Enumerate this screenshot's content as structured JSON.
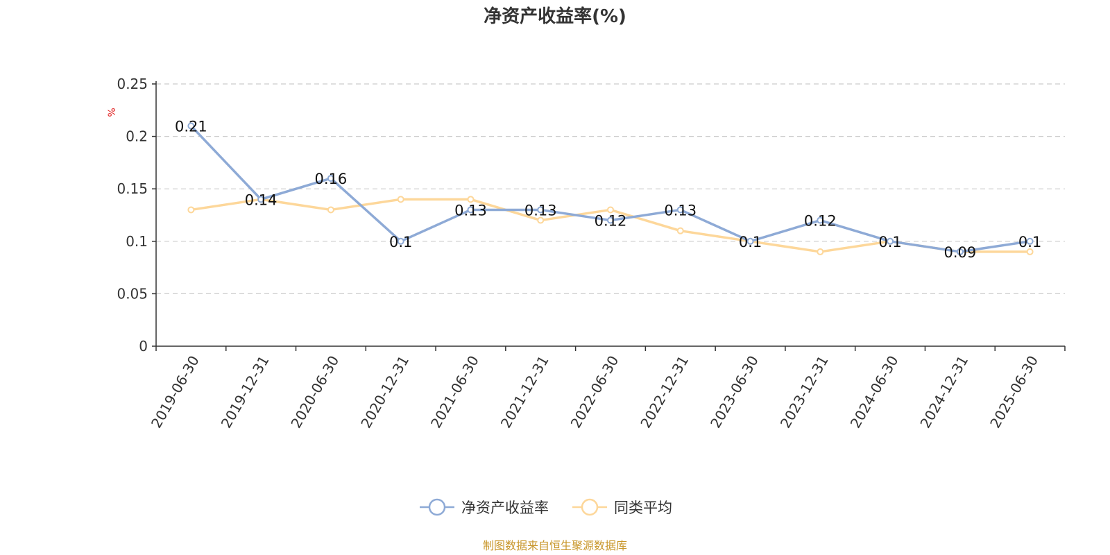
{
  "chart_data": {
    "type": "line",
    "title": "净资产收益率(%)",
    "ylabel": "%",
    "xlabel": "",
    "ylim": [
      0,
      0.25
    ],
    "yticks": [
      "0",
      "0.05",
      "0.1",
      "0.15",
      "0.2",
      "0.25"
    ],
    "grid": true,
    "legend_position": "bottom",
    "categories": [
      "2019-06-30",
      "2019-12-31",
      "2020-06-30",
      "2020-12-31",
      "2021-06-30",
      "2021-12-31",
      "2022-06-30",
      "2022-12-31",
      "2023-06-30",
      "2023-12-31",
      "2024-06-30",
      "2024-12-31",
      "2025-06-30"
    ],
    "series": [
      {
        "name": "净资产收益率",
        "color": "#8eaad6",
        "values": [
          0.21,
          0.14,
          0.16,
          0.1,
          0.13,
          0.13,
          0.12,
          0.13,
          0.1,
          0.12,
          0.1,
          0.09,
          0.1
        ],
        "labels": [
          "0.21",
          "0.14",
          "0.16",
          "0.1",
          "0.13",
          "0.13",
          "0.12",
          "0.13",
          "0.1",
          "0.12",
          "0.1",
          "0.09",
          "0.1"
        ]
      },
      {
        "name": "同类平均",
        "color": "#fdd79a",
        "values": [
          0.13,
          0.14,
          0.13,
          0.14,
          0.14,
          0.12,
          0.13,
          0.11,
          0.1,
          0.09,
          0.1,
          0.09,
          0.09
        ]
      }
    ],
    "source": "制图数据来自恒生聚源数据库"
  }
}
